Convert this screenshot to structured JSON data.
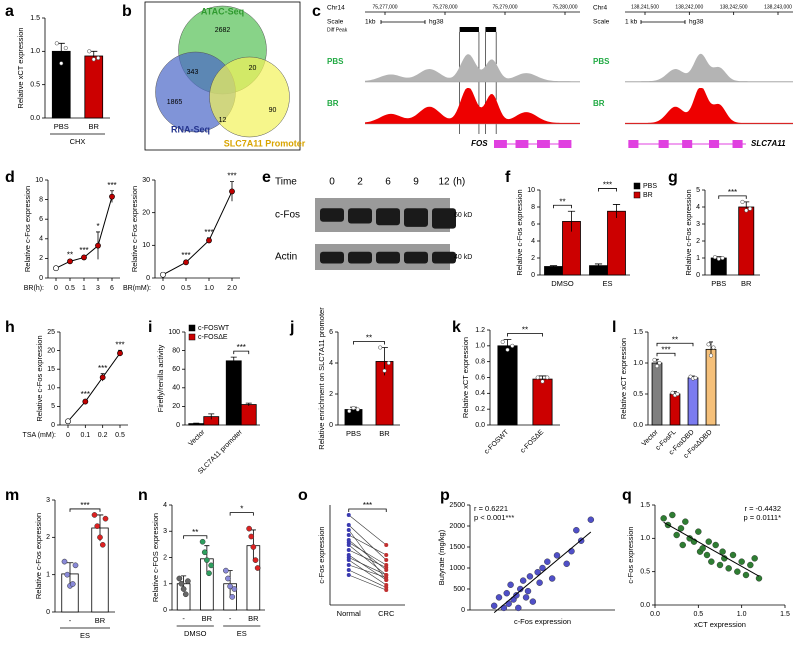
{
  "chart_data": [
    {
      "type": "bar",
      "label": "a",
      "ylabel": "Relative xCT expression",
      "xlabel": "CHX",
      "categories": [
        "PBS",
        "BR"
      ],
      "values": [
        1.0,
        0.93
      ],
      "errors": [
        0.12,
        0.07
      ],
      "colors": [
        "#000000",
        "#cc0000"
      ],
      "points": [
        [
          1.12,
          0.82,
          1.05
        ],
        [
          1.0,
          0.88,
          0.9
        ]
      ],
      "ylim": [
        0,
        1.5
      ],
      "yticks": [
        {
          "value": 0,
          "label": "0.0"
        },
        {
          "value": 0.5,
          "label": "0.5"
        },
        {
          "value": 1,
          "label": "1.0"
        },
        {
          "value": 1.5,
          "label": "1.5"
        }
      ]
    },
    {
      "type": "venn",
      "label": "b",
      "sets": [
        {
          "name": "ATAC-Seq",
          "color": "#55c055",
          "label_color": "#2f9a2f"
        },
        {
          "name": "RNA-Seq",
          "color": "#4a66c8",
          "label_color": "#24348e"
        },
        {
          "name": "SLC7A11 Promoter",
          "color": "#f2f25a",
          "label_color": "#d9a400"
        }
      ],
      "counts": [
        2682,
        1865,
        90,
        343,
        20,
        12
      ]
    },
    {
      "type": "track",
      "label": "c",
      "scale_label": "Scale",
      "tracks": [
        {
          "chrom": "Chr14",
          "coords": [
            "75,277,000",
            "75,278,000",
            "75,279,000",
            "75,280,000"
          ],
          "scale": "1kb",
          "genome": "hg38",
          "peak": "Diff Peak",
          "gene": "FOS"
        },
        {
          "chrom": "Chr4",
          "coords": [
            "138,241,500",
            "138,242,000",
            "138,242,500",
            "138,243,000"
          ],
          "scale": "1 kb",
          "genome": "hg38",
          "gene": "SLC7A11"
        }
      ],
      "samples": [
        {
          "name": "PBS",
          "color": "#b4b4b4",
          "name_color": "#22aa44"
        },
        {
          "name": "BR",
          "color": "#ee0000",
          "name_color": "#22aa44"
        }
      ]
    },
    {
      "type": "line",
      "label": "d",
      "categories": [
        "0",
        "0.5",
        "1",
        "3",
        "6"
      ],
      "xlabel": "BR(h):",
      "ylabel": "Relative c-Fos expression",
      "values": [
        1,
        1.7,
        2.1,
        3.3,
        8.3
      ],
      "errors": [
        0,
        0.1,
        0.15,
        1.4,
        0.6
      ],
      "point_labels": [
        null,
        "**",
        "***",
        "*",
        "***"
      ],
      "ylim": [
        0,
        10
      ],
      "yticks": [
        0,
        2,
        4,
        6,
        8,
        10
      ],
      "color": "#c00000"
    },
    {
      "type": "line",
      "categories": [
        "0",
        "0.5",
        "1.0",
        "2.0"
      ],
      "xlabel": "BR(mM):",
      "ylabel": "Relative c-Fos expression",
      "values": [
        1,
        4.8,
        11.5,
        26.5
      ],
      "errors": [
        0,
        0.4,
        0.8,
        3
      ],
      "point_labels": [
        null,
        "***",
        "***",
        "***"
      ],
      "ylim": [
        0,
        30
      ],
      "yticks": [
        0,
        10,
        20,
        30
      ],
      "color": "#c00000"
    },
    {
      "type": "blot",
      "label": "e",
      "header": "Time",
      "lanes": [
        "0",
        "2",
        "6",
        "9",
        "12"
      ],
      "unit": "(h)",
      "bands": [
        "c-Fos",
        "Actin"
      ],
      "markers": [
        "60 kD",
        "40 kD"
      ]
    },
    {
      "type": "bar",
      "label": "f",
      "categories": [
        "DMSO",
        "ES"
      ],
      "series": [
        {
          "name": "PBS",
          "color": "#000000",
          "values": [
            1.0,
            1.1
          ],
          "errors": [
            0.1,
            0.2
          ]
        },
        {
          "name": "BR",
          "color": "#cc0000",
          "values": [
            6.3,
            7.5
          ],
          "errors": [
            1.2,
            0.8
          ]
        }
      ],
      "sig": [
        "**",
        "***"
      ],
      "legend": "outside-right",
      "ylabel": "Relative c-Fos expression",
      "ylim": [
        0,
        10
      ],
      "yticks": [
        0,
        2,
        4,
        6,
        8,
        10
      ]
    },
    {
      "type": "bar",
      "label": "g",
      "categories": [
        "PBS",
        "BR"
      ],
      "values": [
        1.0,
        4.0
      ],
      "errors": [
        0.08,
        0.3
      ],
      "colors": [
        "#000000",
        "#cc0000"
      ],
      "points": [
        [
          1.05,
          0.95,
          1.0
        ],
        [
          4.3,
          3.8,
          3.9
        ]
      ],
      "sig": [
        "***"
      ],
      "ylabel": "Relative c-Fos expression",
      "ylim": [
        0,
        5
      ],
      "yticks": [
        0,
        1,
        2,
        3,
        4,
        5
      ]
    },
    {
      "type": "line",
      "label": "h",
      "categories": [
        "0",
        "0.1",
        "0.2",
        "0.5"
      ],
      "xlabel": "TSA (mM):",
      "ylabel": "Relative c-Fos expression",
      "values": [
        1,
        6.3,
        12.8,
        19.3
      ],
      "errors": [
        0,
        0.4,
        1,
        0.8
      ],
      "point_labels": [
        null,
        "***",
        "***",
        "***"
      ],
      "ylim": [
        0,
        25
      ],
      "yticks": [
        0,
        5,
        10,
        15,
        20,
        25
      ],
      "color": "#c00000"
    },
    {
      "type": "bar",
      "label": "i",
      "categories": [
        "Vector",
        "SLC7A11 promoter"
      ],
      "series": [
        {
          "name": "c-FOSWT",
          "color": "#000000",
          "values": [
            1.5,
            69
          ],
          "errors": [
            0.5,
            4
          ]
        },
        {
          "name": "c-FOSΔE",
          "color": "#cc0000",
          "values": [
            9,
            22
          ],
          "errors": [
            3,
            1.5
          ]
        }
      ],
      "sig": [
        "***"
      ],
      "legend": "top-left",
      "ylabel": "Firefly/renilla activity",
      "ylim": [
        0,
        100
      ],
      "yticks": [
        0,
        20,
        40,
        60,
        80,
        100
      ]
    },
    {
      "type": "bar",
      "label": "j",
      "categories": [
        "PBS",
        "BR"
      ],
      "values": [
        1.0,
        4.1
      ],
      "errors": [
        0.15,
        0.9
      ],
      "colors": [
        "#000000",
        "#cc0000"
      ],
      "points": [
        [
          0.9,
          1.1,
          1.0
        ],
        [
          5.0,
          3.5,
          4.0
        ]
      ],
      "sig": [
        "**"
      ],
      "ylabel": "Relative enrichment on SLC7A11 promoter",
      "ylim": [
        0,
        6
      ],
      "yticks": [
        0,
        2,
        4,
        6
      ]
    },
    {
      "type": "bar",
      "label": "k",
      "categories": [
        "c-FOSWT",
        "c-FOSΔE"
      ],
      "values": [
        1.0,
        0.58
      ],
      "errors": [
        0.08,
        0.04
      ],
      "colors": [
        "#000000",
        "#cc0000"
      ],
      "points": [
        [
          1.05,
          0.95,
          1.0
        ],
        [
          0.6,
          0.55,
          0.6
        ]
      ],
      "sig": [
        "**"
      ],
      "ylabel": "Relative xCT expression",
      "ylim": [
        0,
        1.2
      ],
      "yticks": [
        {
          "value": 0,
          "label": "0.0"
        },
        {
          "value": 0.2,
          "label": "0.2"
        },
        {
          "value": 0.4,
          "label": "0.4"
        },
        {
          "value": 0.6,
          "label": "0.6"
        },
        {
          "value": 0.8,
          "label": "0.8"
        },
        {
          "value": 1,
          "label": "1.0"
        },
        {
          "value": 1.2,
          "label": "1.2"
        }
      ]
    },
    {
      "type": "bar",
      "label": "l",
      "categories": [
        "Vector",
        "c-FosFL",
        "c-FosDBD",
        "c-FosΔDBD"
      ],
      "values": [
        1.0,
        0.5,
        0.76,
        1.22
      ],
      "errors": [
        0.06,
        0.04,
        0.03,
        0.12
      ],
      "colors": [
        "#7f7f7f",
        "#cc0000",
        "#7b7bf0",
        "#f5c07a"
      ],
      "points": [
        [
          1.05,
          0.95,
          1.0
        ],
        [
          0.52,
          0.48,
          0.5
        ],
        [
          0.78,
          0.75,
          0.76
        ],
        [
          1.3,
          1.12,
          1.25
        ]
      ],
      "sig": [
        "***",
        "**"
      ],
      "ylabel": "Relative xCT expression",
      "ylim": [
        0,
        1.5
      ],
      "yticks": [
        {
          "value": 0,
          "label": "0.0"
        },
        {
          "value": 0.5,
          "label": "0.5"
        },
        {
          "value": 1,
          "label": "1.0"
        },
        {
          "value": 1.5,
          "label": "1.5"
        }
      ]
    },
    {
      "type": "bar",
      "label": "m",
      "categories": [
        "-",
        "BR"
      ],
      "xlabel": "ES",
      "values": [
        1.02,
        2.25
      ],
      "errors": [
        0.3,
        0.35
      ],
      "colors": [
        "#ffffff",
        "#ffffff"
      ],
      "point_colors": [
        "#8a8ad8",
        "#dd2222"
      ],
      "points": [
        [
          1.35,
          1.0,
          0.7,
          0.75,
          1.25
        ],
        [
          2.6,
          2.3,
          2.0,
          1.8,
          2.5
        ]
      ],
      "sig": [
        "***"
      ],
      "ylabel": "Relative c-Fos expression",
      "ylim": [
        0,
        3
      ],
      "yticks": [
        0,
        1,
        2,
        3
      ]
    },
    {
      "type": "bar",
      "label": "n",
      "categories": [
        "-",
        "BR",
        "-",
        "BR"
      ],
      "groups": [
        "DMSO",
        "ES"
      ],
      "values": [
        1.0,
        1.95,
        1.0,
        2.45
      ],
      "errors": [
        0.3,
        0.5,
        0.5,
        0.6
      ],
      "colors": [
        "#ffffff",
        "#ffffff",
        "#ffffff",
        "#ffffff"
      ],
      "point_colors": [
        "#666666",
        "#2e9e5e",
        "#8a8ad8",
        "#dd2222"
      ],
      "points": [
        [
          1.2,
          1.0,
          0.8,
          0.6,
          1.1
        ],
        [
          2.6,
          2.2,
          1.9,
          1.4,
          1.7
        ],
        [
          1.5,
          1.2,
          0.9,
          0.5,
          0.8
        ],
        [
          3.1,
          2.8,
          2.4,
          1.9,
          1.6
        ]
      ],
      "sig": [
        "**",
        "*"
      ],
      "ylabel": "Relative c-FOS expression",
      "ylim": [
        0,
        4
      ],
      "yticks": [
        0,
        1,
        2,
        3,
        4
      ]
    },
    {
      "type": "paired",
      "label": "o",
      "categories": [
        "Normal",
        "CRC"
      ],
      "colors": [
        "#3a3ab0",
        "#c03030"
      ],
      "pairs": [
        [
          1.8,
          1.2
        ],
        [
          1.6,
          0.9
        ],
        [
          1.5,
          0.5
        ],
        [
          1.4,
          1.0
        ],
        [
          1.3,
          0.7
        ],
        [
          1.25,
          0.8
        ],
        [
          1.2,
          0.6
        ],
        [
          1.1,
          0.75
        ],
        [
          1.0,
          0.5
        ],
        [
          0.95,
          0.6
        ],
        [
          0.9,
          0.4
        ],
        [
          0.8,
          0.55
        ],
        [
          0.7,
          0.35
        ],
        [
          0.6,
          0.3
        ]
      ],
      "sig": [
        "***"
      ],
      "ylabel": "c-Fos expression",
      "ylim": [
        0,
        2
      ]
    },
    {
      "type": "scatter",
      "label": "p",
      "color": "#5050c8",
      "xlabel": "c-Fos expression",
      "ylabel": "Butyrate (mg/kg)",
      "annotations": [
        "r = 0.6221",
        "p < 0.001***"
      ],
      "annotation_corner": "top-left",
      "x": [
        0.25,
        0.3,
        0.35,
        0.38,
        0.4,
        0.42,
        0.45,
        0.48,
        0.5,
        0.52,
        0.55,
        0.58,
        0.6,
        0.62,
        0.65,
        0.7,
        0.72,
        0.75,
        0.8,
        0.85,
        0.9,
        1.0,
        1.05,
        1.1,
        1.15,
        1.25
      ],
      "y": [
        100,
        300,
        50,
        400,
        150,
        600,
        250,
        350,
        50,
        500,
        700,
        300,
        450,
        800,
        200,
        900,
        650,
        1000,
        1150,
        750,
        1300,
        1100,
        1400,
        1900,
        1650,
        2150
      ],
      "xlim": [
        0,
        1.5
      ],
      "ylim": [
        0,
        2500
      ],
      "yticks": [
        0,
        500,
        1000,
        1500,
        2000,
        2500
      ]
    },
    {
      "type": "scatter",
      "label": "q",
      "color": "#2e7d32",
      "xlabel": "xCT expression",
      "ylabel": "c-Fos expression",
      "annotations": [
        "r = -0.4432",
        "p = 0.0111*"
      ],
      "annotation_corner": "top-right",
      "x": [
        0.1,
        0.15,
        0.2,
        0.25,
        0.3,
        0.32,
        0.35,
        0.4,
        0.45,
        0.5,
        0.52,
        0.55,
        0.6,
        0.62,
        0.65,
        0.7,
        0.75,
        0.78,
        0.8,
        0.85,
        0.9,
        0.95,
        1.0,
        1.05,
        1.1,
        1.15,
        1.2
      ],
      "y": [
        1.3,
        1.2,
        1.35,
        1.05,
        1.15,
        0.9,
        1.25,
        1.0,
        0.95,
        1.1,
        0.8,
        0.85,
        0.75,
        0.95,
        0.65,
        0.9,
        0.6,
        0.8,
        0.7,
        0.55,
        0.75,
        0.5,
        0.65,
        0.45,
        0.6,
        0.7,
        0.4
      ],
      "xlim": [
        0,
        1.5
      ],
      "xticks": [
        {
          "value": 0,
          "label": "0.0"
        },
        {
          "value": 0.5,
          "label": "0.5"
        },
        {
          "value": 1,
          "label": "1.0"
        },
        {
          "value": 1.5,
          "label": "1.5"
        }
      ],
      "ylim": [
        0,
        1.5
      ],
      "yticks": [
        {
          "value": 0,
          "label": "0.0"
        },
        {
          "value": 0.5,
          "label": "0.5"
        },
        {
          "value": 1,
          "label": "1.0"
        },
        {
          "value": 1.5,
          "label": "1.5"
        }
      ]
    }
  ]
}
